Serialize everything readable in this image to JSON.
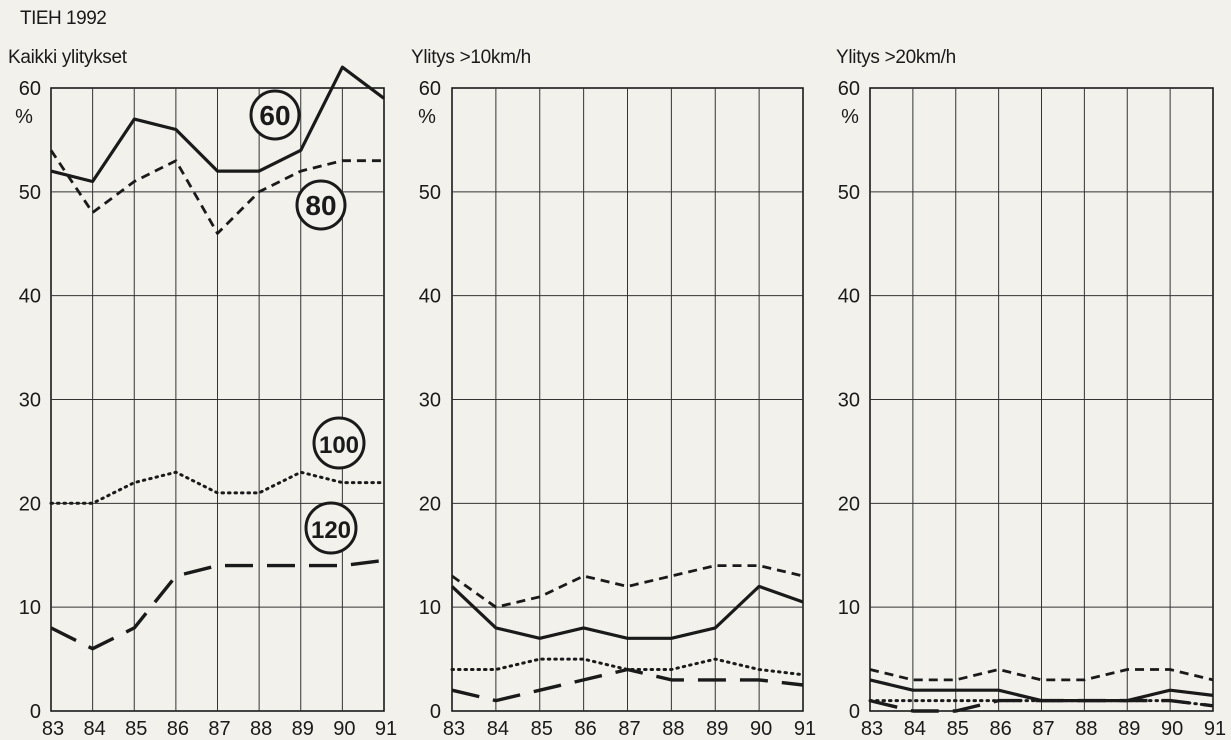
{
  "header": {
    "source": "TIEH 1992"
  },
  "chart_data": [
    {
      "type": "line",
      "title": "Kaikki ylitykset",
      "ylabel": "%",
      "ylim": [
        0,
        60
      ],
      "yticks": [
        0,
        10,
        20,
        30,
        40,
        50,
        60
      ],
      "x": [
        "83",
        "84",
        "85",
        "86",
        "87",
        "88",
        "89",
        "90",
        "91"
      ],
      "grid": true,
      "series": [
        {
          "name": "60",
          "style": "solid",
          "values": [
            52,
            51,
            57,
            56,
            52,
            52,
            54,
            62,
            59
          ]
        },
        {
          "name": "80",
          "style": "dashed",
          "values": [
            54,
            48,
            51,
            53,
            46,
            50,
            52,
            53,
            53
          ]
        },
        {
          "name": "100",
          "style": "dotted",
          "values": [
            20,
            20,
            22,
            23,
            21,
            21,
            23,
            22,
            22
          ]
        },
        {
          "name": "120",
          "style": "longdash",
          "values": [
            8,
            6,
            8,
            13,
            14,
            14,
            14,
            14,
            14.5
          ]
        }
      ]
    },
    {
      "type": "line",
      "title": "Ylitys >10km/h",
      "ylabel": "%",
      "ylim": [
        0,
        60
      ],
      "yticks": [
        0,
        10,
        20,
        30,
        40,
        50,
        60
      ],
      "x": [
        "83",
        "84",
        "85",
        "86",
        "87",
        "88",
        "89",
        "90",
        "91"
      ],
      "grid": true,
      "series": [
        {
          "style": "solid",
          "values": [
            12,
            8,
            7,
            8,
            7,
            7,
            8,
            12,
            10.5
          ]
        },
        {
          "style": "dashed",
          "values": [
            13,
            10,
            11,
            13,
            12,
            13,
            14,
            14,
            13
          ]
        },
        {
          "style": "dotted",
          "values": [
            4,
            4,
            5,
            5,
            4,
            4,
            5,
            4,
            3.5
          ]
        },
        {
          "style": "longdash",
          "values": [
            2,
            1,
            2,
            3,
            4,
            3,
            3,
            3,
            2.5
          ]
        }
      ]
    },
    {
      "type": "line",
      "title": "Ylitys >20km/h",
      "ylabel": "%",
      "ylim": [
        0,
        60
      ],
      "yticks": [
        0,
        10,
        20,
        30,
        40,
        50,
        60
      ],
      "x": [
        "83",
        "84",
        "85",
        "86",
        "87",
        "88",
        "89",
        "90",
        "91"
      ],
      "grid": true,
      "series": [
        {
          "style": "solid",
          "values": [
            3,
            2,
            2,
            2,
            1,
            1,
            1,
            2,
            1.5
          ]
        },
        {
          "style": "dashed",
          "values": [
            4,
            3,
            3,
            4,
            3,
            3,
            4,
            4,
            3
          ]
        },
        {
          "style": "dotted",
          "values": [
            1,
            1,
            1,
            1,
            1,
            1,
            1,
            1,
            0.5
          ]
        },
        {
          "style": "longdash",
          "values": [
            1,
            0,
            0,
            1,
            1,
            1,
            1,
            1,
            0.5
          ]
        }
      ]
    }
  ]
}
